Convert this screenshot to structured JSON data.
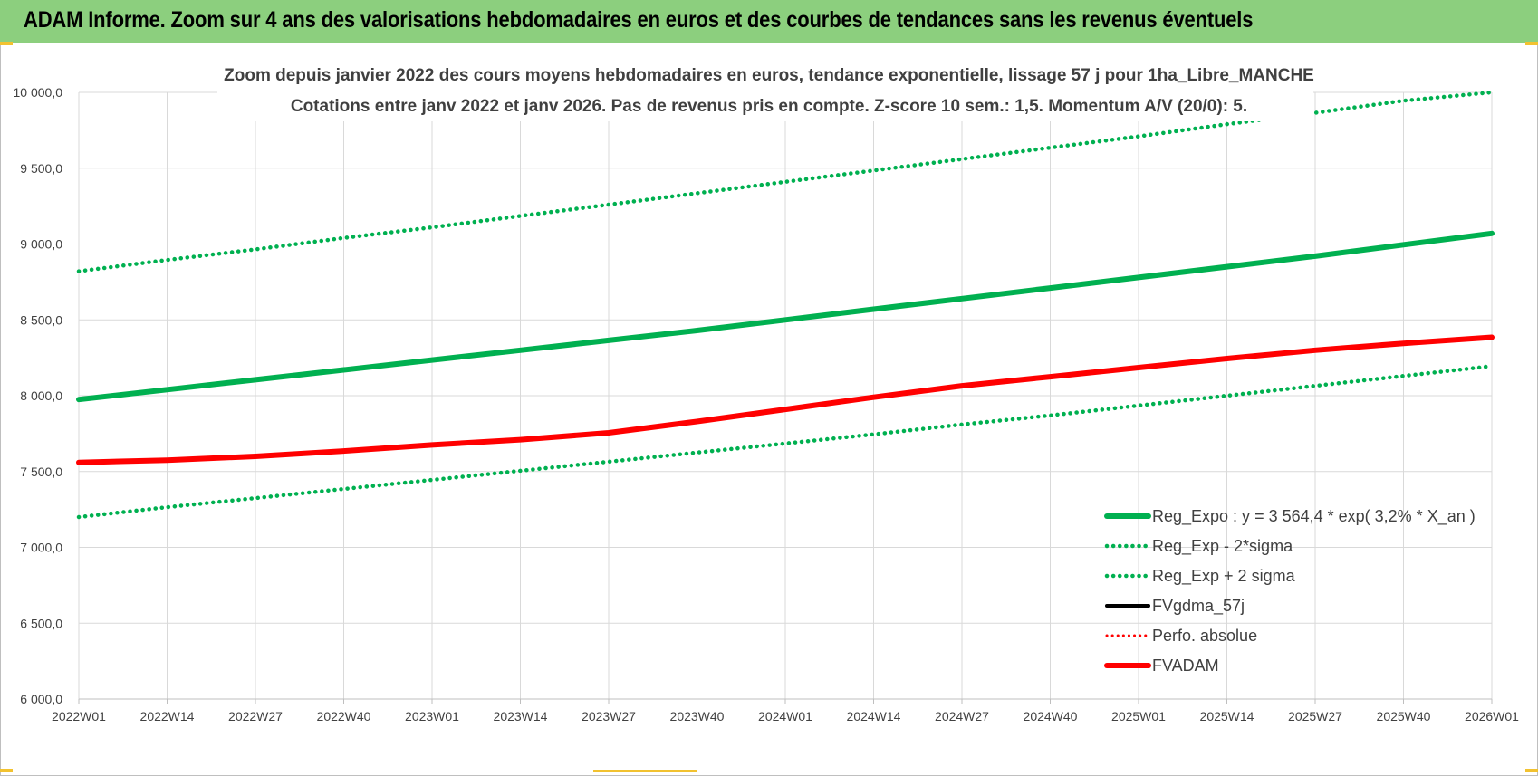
{
  "banner": {
    "title": "ADAM Informe. Zoom sur 4 ans des valorisations hebdomadaires en euros et des courbes de tendances sans les revenus éventuels"
  },
  "colors": {
    "banner_bg": "#8ccf7e",
    "reg_expo": "#00b050",
    "perfo": "#ff0000",
    "fvgdma": "#000000",
    "grid": "#d9d9d9",
    "text": "#404040"
  },
  "chart_data": {
    "type": "line",
    "title_lines": [
      "Zoom depuis janvier 2022 des cours moyens hebdomadaires en euros, tendance exponentielle, lissage 57 j pour 1ha_Libre_MANCHE",
      "Cotations entre janv 2022 et janv 2026. Pas de revenus pris en compte. Z-score 10 sem.: 1,5. Momentum A/V (20/0): 5."
    ],
    "x_categories": [
      "2022W01",
      "2022W14",
      "2022W27",
      "2022W40",
      "2023W01",
      "2023W14",
      "2023W27",
      "2023W40",
      "2024W01",
      "2024W14",
      "2024W27",
      "2024W40",
      "2025W01",
      "2025W14",
      "2025W27",
      "2025W40",
      "2026W01"
    ],
    "y_ticks": [
      "6 000,0",
      "6 500,0",
      "7 000,0",
      "7 500,0",
      "8 000,0",
      "8 500,0",
      "9 000,0",
      "9 500,0",
      "10 000,0"
    ],
    "ylim": [
      6000,
      10000
    ],
    "grid": true,
    "legend_position": "bottom-right",
    "series": [
      {
        "name": "Reg_Expo : y = 3 564,4 * exp( 3,2% *  X_an )",
        "style": "solid-thick",
        "color": "#00b050",
        "values": [
          7975,
          8040,
          8105,
          8170,
          8235,
          8300,
          8365,
          8430,
          8500,
          8570,
          8640,
          8710,
          8780,
          8850,
          8920,
          8995,
          9070
        ]
      },
      {
        "name": "Reg_Exp - 2*sigma",
        "style": "dotted",
        "color": "#00b050",
        "values": [
          7200,
          7265,
          7325,
          7385,
          7445,
          7505,
          7565,
          7625,
          7685,
          7745,
          7810,
          7870,
          7935,
          8000,
          8065,
          8130,
          8195
        ]
      },
      {
        "name": "Reg_Exp + 2 sigma",
        "style": "dotted",
        "color": "#00b050",
        "values": [
          8820,
          8895,
          8965,
          9040,
          9110,
          9185,
          9260,
          9335,
          9410,
          9485,
          9560,
          9635,
          9710,
          9790,
          9865,
          9945,
          10000
        ]
      },
      {
        "name": "FVgdma_57j",
        "style": "solid",
        "color": "#000000",
        "values": []
      },
      {
        "name": "Perfo. absolue",
        "style": "dotted-thin",
        "color": "#ff0000",
        "values": []
      },
      {
        "name": "FVADAM",
        "style": "solid-thick",
        "color": "#ff0000",
        "values": [
          7560,
          7575,
          7600,
          7635,
          7675,
          7710,
          7755,
          7830,
          7910,
          7990,
          8065,
          8125,
          8185,
          8245,
          8300,
          8345,
          8385
        ]
      }
    ]
  }
}
